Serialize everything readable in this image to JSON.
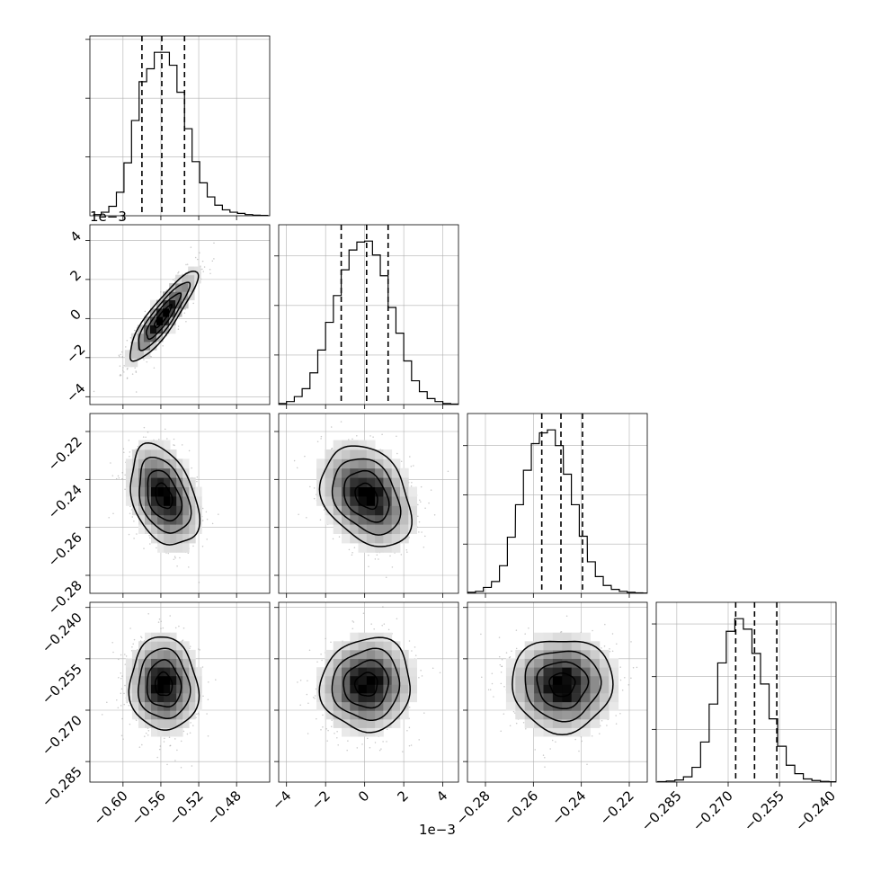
{
  "chart_data": {
    "type": "corner",
    "grid": true,
    "parameters": [
      {
        "index": 0,
        "range": [
          -0.635,
          -0.445
        ],
        "ticks": [
          -0.6,
          -0.56,
          -0.52,
          -0.48
        ],
        "tick_labels": [
          "−0.60",
          "−0.56",
          "−0.52",
          "−0.48"
        ],
        "offset_text": "",
        "quantiles": [
          -0.58,
          -0.559,
          -0.535
        ],
        "hist_centers": [
          -0.627,
          -0.619,
          -0.611,
          -0.603,
          -0.595,
          -0.587,
          -0.579,
          -0.571,
          -0.563,
          -0.555,
          -0.547,
          -0.539,
          -0.531,
          -0.523,
          -0.515,
          -0.507,
          -0.499,
          -0.491,
          -0.483,
          -0.475,
          -0.467,
          -0.459,
          -0.451
        ],
        "hist_counts": [
          0.01,
          0.03,
          0.08,
          0.2,
          0.45,
          0.81,
          1.14,
          1.25,
          1.39,
          1.39,
          1.28,
          1.05,
          0.74,
          0.46,
          0.28,
          0.16,
          0.09,
          0.05,
          0.03,
          0.02,
          0.01,
          0.005,
          0.003
        ],
        "hist_yticks": [
          0.5,
          1.0,
          1.5
        ]
      },
      {
        "index": 1,
        "range": [
          -4.4,
          4.8
        ],
        "ticks": [
          -4,
          -2,
          0,
          2,
          4
        ],
        "tick_labels": [
          "−4",
          "−2",
          "0",
          "2",
          "4"
        ],
        "offset_text": "1e−3",
        "quantiles": [
          -1.2,
          0.1,
          1.2
        ],
        "hist_centers": [
          -4.2,
          -3.8,
          -3.4,
          -3.0,
          -2.6,
          -2.2,
          -1.8,
          -1.4,
          -1.0,
          -0.6,
          -0.2,
          0.2,
          0.6,
          1.0,
          1.4,
          1.8,
          2.2,
          2.6,
          3.0,
          3.4,
          3.8,
          4.2,
          4.6
        ],
        "hist_counts": [
          0.01,
          0.03,
          0.08,
          0.16,
          0.32,
          0.55,
          0.83,
          1.1,
          1.36,
          1.56,
          1.64,
          1.65,
          1.51,
          1.3,
          0.98,
          0.72,
          0.44,
          0.24,
          0.13,
          0.06,
          0.03,
          0.01,
          0.005
        ],
        "hist_yticks": [
          0.5,
          1.0,
          1.5
        ]
      },
      {
        "index": 2,
        "range": [
          -0.2875,
          -0.2125
        ],
        "ticks": [
          -0.28,
          -0.26,
          -0.24,
          -0.22
        ],
        "tick_labels": [
          "−0.28",
          "−0.26",
          "−0.24",
          "−0.22"
        ],
        "offset_text": "",
        "quantiles": [
          -0.2565,
          -0.2485,
          -0.2395
        ],
        "hist_centers": [
          -0.2858,
          -0.2825,
          -0.2792,
          -0.2758,
          -0.2725,
          -0.2692,
          -0.2658,
          -0.2625,
          -0.2592,
          -0.2558,
          -0.2525,
          -0.2492,
          -0.2458,
          -0.2425,
          -0.2392,
          -0.2358,
          -0.2325,
          -0.2292,
          -0.2258,
          -0.2225,
          -0.2192,
          -0.2158,
          -0.2138
        ],
        "hist_counts": [
          0.01,
          0.02,
          0.06,
          0.12,
          0.28,
          0.57,
          0.9,
          1.25,
          1.52,
          1.63,
          1.66,
          1.5,
          1.21,
          0.9,
          0.58,
          0.32,
          0.17,
          0.08,
          0.04,
          0.02,
          0.01,
          0.005,
          0.003
        ],
        "hist_yticks": [
          0.5,
          1.0,
          1.5
        ]
      },
      {
        "index": 3,
        "range": [
          -0.291,
          -0.2385
        ],
        "ticks": [
          -0.285,
          -0.27,
          -0.255,
          -0.24
        ],
        "tick_labels": [
          "−0.285",
          "−0.270",
          "−0.255",
          "−0.240"
        ],
        "offset_text": "",
        "quantiles": [
          -0.2678,
          -0.2623,
          -0.2558
        ],
        "hist_centers": [
          -0.2893,
          -0.2868,
          -0.2843,
          -0.2818,
          -0.2793,
          -0.2768,
          -0.2743,
          -0.2718,
          -0.2693,
          -0.2668,
          -0.2643,
          -0.2618,
          -0.2593,
          -0.2568,
          -0.2543,
          -0.2518,
          -0.2493,
          -0.2468,
          -0.2443,
          -0.2418,
          -0.2393
        ],
        "hist_counts": [
          0.005,
          0.01,
          0.02,
          0.05,
          0.14,
          0.38,
          0.74,
          1.13,
          1.43,
          1.55,
          1.45,
          1.22,
          0.93,
          0.6,
          0.34,
          0.16,
          0.08,
          0.03,
          0.015,
          0.007,
          0.003
        ],
        "hist_yticks": [
          0.5,
          1.0,
          1.5
        ]
      }
    ],
    "pairs": [
      {
        "row": 1,
        "col": 0,
        "mean": [
          -0.558,
          0.1
        ],
        "sd": [
          0.018,
          1.15
        ],
        "rho": 0.88
      },
      {
        "row": 2,
        "col": 0,
        "mean": [
          -0.557,
          -0.247
        ],
        "sd": [
          0.018,
          0.0105
        ],
        "rho": -0.35
      },
      {
        "row": 2,
        "col": 1,
        "mean": [
          0.1,
          -0.247
        ],
        "sd": [
          1.15,
          0.0105
        ],
        "rho": -0.3
      },
      {
        "row": 3,
        "col": 0,
        "mean": [
          -0.557,
          -0.2625
        ],
        "sd": [
          0.018,
          0.0068
        ],
        "rho": -0.05
      },
      {
        "row": 3,
        "col": 1,
        "mean": [
          0.1,
          -0.2625
        ],
        "sd": [
          1.15,
          0.0068
        ],
        "rho": 0.05
      },
      {
        "row": 3,
        "col": 2,
        "mean": [
          -0.248,
          -0.2625
        ],
        "sd": [
          0.0105,
          0.0068
        ],
        "rho": 0.0
      }
    ],
    "contour_levels": [
      0.5,
      1.0,
      1.5,
      2.0
    ],
    "density_bins": 14,
    "scatter_points_per_panel": 900,
    "colors": {
      "line": "#000000",
      "scatter": "#9a9a9a",
      "grid": "#b0b0b0",
      "quantile_line": "#000000"
    }
  }
}
